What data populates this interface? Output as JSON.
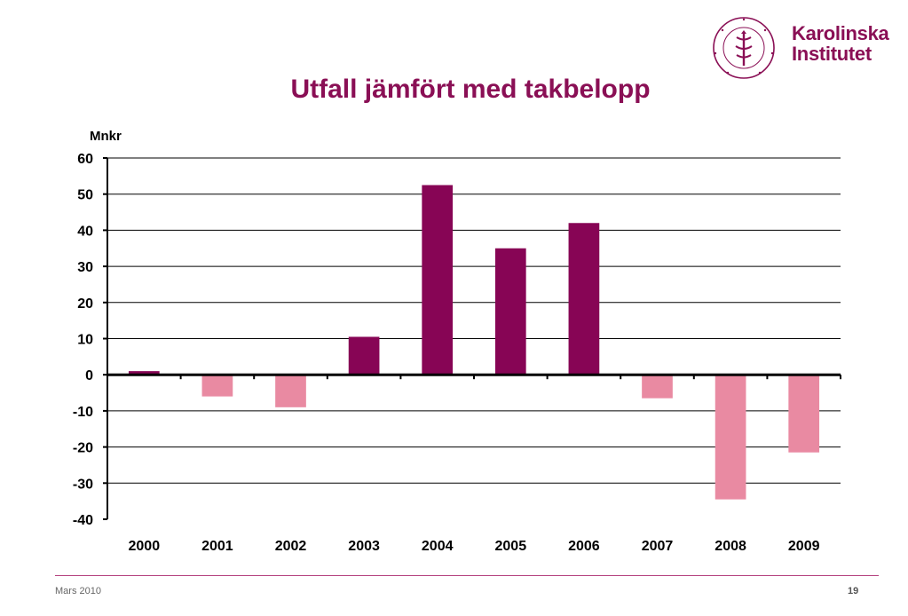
{
  "slide": {
    "title": "Utfall jämfört med takbelopp",
    "footer_left": "Mars 2010",
    "page_number": "19"
  },
  "logo": {
    "line1": "Karolinska",
    "line2": "Institutet",
    "seal_text": "KAROLINSKA INSTITUTET · ANNO 1810"
  },
  "colors": {
    "brand": "#8a0f55",
    "positive_bar": "#870555",
    "negative_bar": "#e98aa2",
    "footer_rule": "#b4417e"
  },
  "chart_data": {
    "type": "bar",
    "title": "",
    "xlabel": "",
    "ylabel": "Mnkr",
    "categories": [
      "2000",
      "2001",
      "2002",
      "2003",
      "2004",
      "2005",
      "2006",
      "2007",
      "2008",
      "2009"
    ],
    "values": [
      1,
      -6,
      -9,
      10.5,
      52.5,
      35,
      42,
      -6.5,
      -34.5,
      -21.5
    ],
    "ylim": [
      -40,
      60
    ],
    "yticks": [
      60,
      50,
      40,
      30,
      20,
      10,
      0,
      -10,
      -20,
      -30,
      -40
    ],
    "grid": true,
    "legend": "none"
  }
}
